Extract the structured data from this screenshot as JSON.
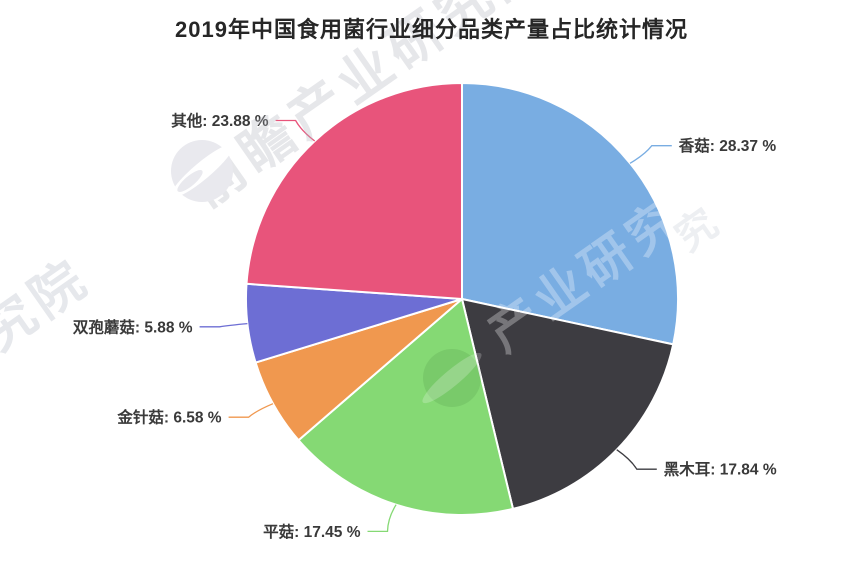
{
  "header": {
    "title": "2019年中国食用菌行业细分品类产量占比统计情况"
  },
  "chart_data": {
    "type": "pie",
    "title": "2019年中国食用菌行业细分品类产量占比统计情况",
    "unit": "%",
    "direction": "clockwise",
    "start_angle": "12-oclock",
    "label_separator": ": ",
    "value_suffix": " %",
    "label_text_color": "#3a3a3a",
    "slice_border_color": "#ffffff",
    "legend": false,
    "slices": [
      {
        "label": "香菇",
        "value": 28.37,
        "color": "#79ade2"
      },
      {
        "label": "黑木耳",
        "value": 17.84,
        "color": "#3d3c41"
      },
      {
        "label": "平菇",
        "value": 17.45,
        "color": "#85d974"
      },
      {
        "label": "金针菇",
        "value": 6.58,
        "color": "#f0984f"
      },
      {
        "label": "双孢蘑菇",
        "value": 5.88,
        "color": "#6d6ed4"
      },
      {
        "label": "其他",
        "value": 23.88,
        "color": "#e8547b"
      }
    ]
  },
  "watermarks": {
    "brand_top": "前瞻产业研究院",
    "brand_right": "产业研究院",
    "fragment_left": "研究院",
    "fragment_top_right": "究"
  }
}
